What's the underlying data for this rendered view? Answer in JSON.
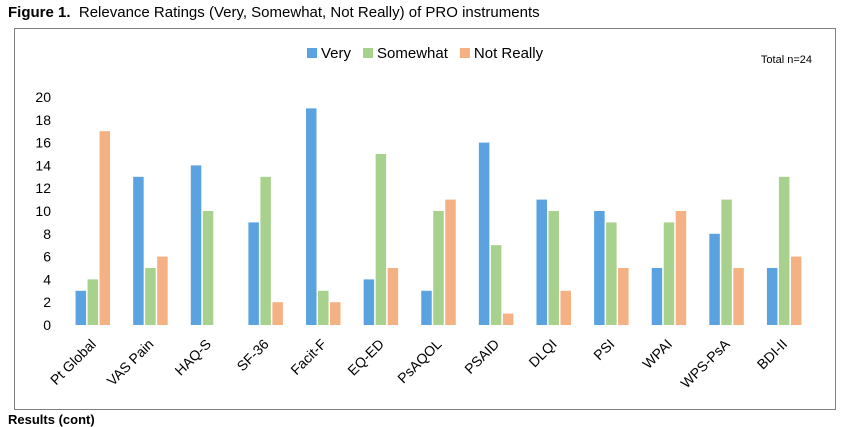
{
  "caption": {
    "figure_label": "Figure 1",
    "title": "Relevance Ratings (Very, Somewhat, Not Really) of PRO instruments"
  },
  "footer": "Results (cont)",
  "chart_data": {
    "type": "bar",
    "title": "",
    "xlabel": "",
    "ylabel": "",
    "ylim": [
      0,
      20
    ],
    "yticks": [
      0,
      2,
      4,
      6,
      8,
      10,
      12,
      14,
      16,
      18,
      20
    ],
    "grid": false,
    "legend_position": "top-center",
    "annotation": "Total n=24",
    "categories": [
      "Pt Global",
      "VAS Pain",
      "HAQ-S",
      "SF-36",
      "Facit-F",
      "EQ-ED",
      "PsAQOL",
      "PSAID",
      "DLQI",
      "PSI",
      "WPAI",
      "WPS-PsA",
      "BDI-II"
    ],
    "series": [
      {
        "name": "Very",
        "color": "#5ba3e0",
        "values": [
          3,
          13,
          14,
          9,
          19,
          4,
          3,
          16,
          11,
          10,
          5,
          8,
          5
        ]
      },
      {
        "name": "Somewhat",
        "color": "#a9d18e",
        "values": [
          4,
          5,
          10,
          13,
          3,
          15,
          10,
          7,
          10,
          9,
          9,
          11,
          13
        ]
      },
      {
        "name": "Not Really",
        "color": "#f4b183",
        "values": [
          17,
          6,
          0,
          2,
          2,
          5,
          11,
          1,
          3,
          5,
          10,
          5,
          6
        ]
      }
    ]
  }
}
